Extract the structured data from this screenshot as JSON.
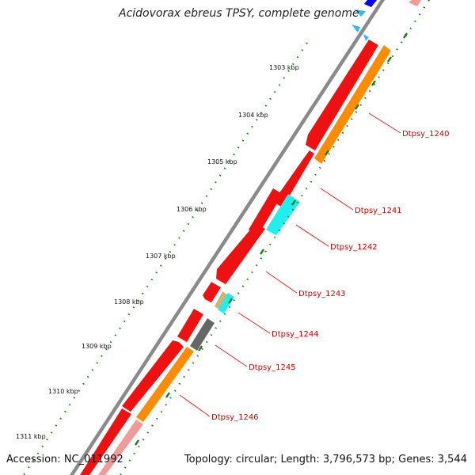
{
  "header": {
    "title": "Acidovorax ebreus TPSY, complete genome"
  },
  "footer": {
    "accession": "Accession: NC_011992",
    "topology": "Topology: circular; Length: 3,796,573 bp; Genes: 3,544"
  },
  "colors": {
    "cds_red": "#ee1111",
    "cds_pink": "#f29a9a",
    "orange": "#ff8c00",
    "cyan": "#22eeee",
    "dark_gray": "#666666",
    "khaki": "#c8b878",
    "blue": "#0000ee",
    "light_blue": "#33bbee",
    "backbone": "#888888",
    "tick_green": "#1a7a1a",
    "label_red": "#cc0000"
  },
  "scale_labels": [
    {
      "text": "1303 kbp"
    },
    {
      "text": "1304 kbp"
    },
    {
      "text": "1305 kbp"
    },
    {
      "text": "1306 kbp"
    },
    {
      "text": "1307 kbp"
    },
    {
      "text": "1308 kbp"
    },
    {
      "text": "1309 kbp"
    },
    {
      "text": "1310 kbp"
    },
    {
      "text": "1311 kbp"
    }
  ],
  "gene_labels": [
    {
      "text": "Dtpsy_1240"
    },
    {
      "text": "Dtpsy_1241"
    },
    {
      "text": "Dtpsy_1242"
    },
    {
      "text": "Dtpsy_1243"
    },
    {
      "text": "Dtpsy_1244"
    },
    {
      "text": "Dtpsy_1245"
    },
    {
      "text": "Dtpsy_1246"
    }
  ]
}
